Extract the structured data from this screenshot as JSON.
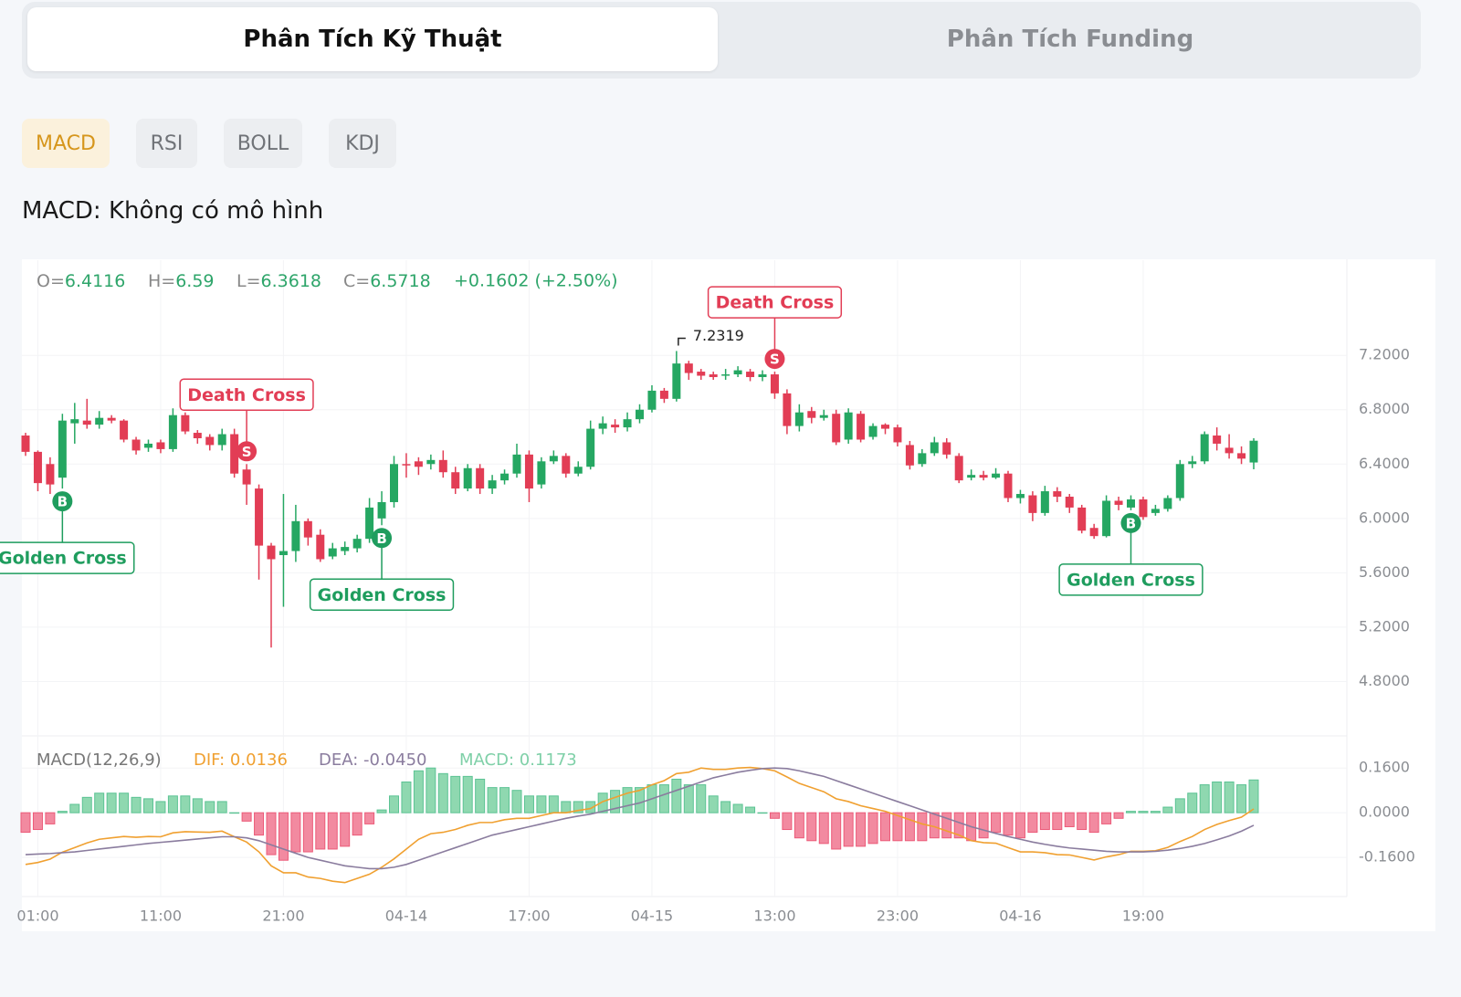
{
  "tabs": [
    "Phân Tích Kỹ Thuật",
    "Phân Tích Funding"
  ],
  "indicators": [
    "MACD",
    "RSI",
    "BOLL",
    "KDJ"
  ],
  "pattern_text": "MACD: Không có mô hình",
  "chart_data": [
    {
      "type": "candlestick",
      "grid": true,
      "up_color": "#25a762",
      "down_color": "#e23d55",
      "legend": [
        "O=6.4116",
        "H=6.59",
        "L=6.3618",
        "C=6.5718",
        "+0.1602 (+2.50%)"
      ],
      "categories": [
        null,
        "01:00",
        null,
        null,
        null,
        null,
        null,
        null,
        null,
        null,
        null,
        "11:00",
        null,
        null,
        null,
        null,
        null,
        null,
        null,
        null,
        null,
        "21:00",
        null,
        null,
        null,
        null,
        null,
        null,
        null,
        null,
        null,
        "04-14",
        null,
        null,
        null,
        null,
        null,
        null,
        null,
        null,
        null,
        "17:00",
        null,
        null,
        null,
        null,
        null,
        null,
        null,
        null,
        null,
        "04-15",
        null,
        null,
        null,
        null,
        null,
        null,
        null,
        null,
        null,
        "13:00",
        null,
        null,
        null,
        null,
        null,
        null,
        null,
        null,
        null,
        "23:00",
        null,
        null,
        null,
        null,
        null,
        null,
        null,
        null,
        null,
        "04-16",
        null,
        null,
        null,
        null,
        null,
        null,
        null,
        null,
        null,
        "19:00",
        null,
        null,
        null,
        null,
        null,
        null,
        null,
        null,
        null
      ],
      "open": [
        6.61,
        6.49,
        6.4,
        6.3,
        6.7,
        6.72,
        6.69,
        6.74,
        6.72,
        6.58,
        6.52,
        6.56,
        6.51,
        6.76,
        6.63,
        6.6,
        6.54,
        6.62,
        6.36,
        6.22,
        5.8,
        5.73,
        5.76,
        5.98,
        5.88,
        5.72,
        5.76,
        5.78,
        5.85,
        6.0,
        6.12,
        6.4,
        6.42,
        6.4,
        6.43,
        6.34,
        6.22,
        6.37,
        6.22,
        6.28,
        6.33,
        6.47,
        6.25,
        6.42,
        6.46,
        6.33,
        6.38,
        6.66,
        6.69,
        6.67,
        6.73,
        6.8,
        6.94,
        6.88,
        7.14,
        7.08,
        7.06,
        7.05,
        7.06,
        7.08,
        7.04,
        7.06,
        6.92,
        6.68,
        6.79,
        6.74,
        6.77,
        6.58,
        6.77,
        6.6,
        6.69,
        6.67,
        6.54,
        6.4,
        6.48,
        6.56,
        6.46,
        6.3,
        6.32,
        6.3,
        6.33,
        6.15,
        6.17,
        6.04,
        6.2,
        6.16,
        6.08,
        5.93,
        5.87,
        6.13,
        6.08,
        6.14,
        6.04,
        6.07,
        6.15,
        6.4,
        6.42,
        6.61,
        6.52,
        6.48,
        6.4116
      ],
      "high": [
        6.63,
        6.5,
        6.45,
        6.77,
        6.85,
        6.88,
        6.79,
        6.76,
        6.73,
        6.6,
        6.58,
        6.58,
        6.81,
        6.78,
        6.65,
        6.62,
        6.66,
        6.66,
        6.4,
        6.25,
        5.82,
        6.18,
        6.1,
        6.0,
        5.92,
        5.82,
        5.83,
        5.88,
        6.15,
        6.2,
        6.46,
        6.48,
        6.45,
        6.47,
        6.5,
        6.38,
        6.4,
        6.4,
        6.32,
        6.36,
        6.55,
        6.5,
        6.45,
        6.5,
        6.48,
        6.42,
        6.72,
        6.75,
        6.73,
        6.78,
        6.84,
        6.98,
        6.96,
        7.2319,
        7.16,
        7.1,
        7.08,
        7.1,
        7.12,
        7.1,
        7.09,
        7.08,
        6.95,
        6.84,
        6.82,
        6.8,
        6.8,
        6.81,
        6.79,
        6.7,
        6.7,
        6.69,
        6.57,
        6.51,
        6.6,
        6.59,
        6.48,
        6.36,
        6.35,
        6.37,
        6.35,
        6.21,
        6.2,
        6.24,
        6.23,
        6.18,
        6.1,
        5.96,
        6.17,
        6.16,
        6.17,
        6.16,
        6.1,
        6.17,
        6.43,
        6.46,
        6.64,
        6.67,
        6.62,
        6.53,
        6.59
      ],
      "low": [
        6.46,
        6.2,
        6.18,
        6.22,
        6.55,
        6.66,
        6.66,
        6.7,
        6.56,
        6.47,
        6.49,
        6.48,
        6.49,
        6.62,
        6.55,
        6.5,
        6.5,
        6.3,
        6.1,
        5.55,
        5.05,
        5.35,
        5.68,
        5.8,
        5.68,
        5.7,
        5.73,
        5.75,
        5.82,
        5.95,
        6.08,
        6.3,
        6.32,
        6.36,
        6.3,
        6.18,
        6.2,
        6.18,
        6.18,
        6.25,
        6.3,
        6.12,
        6.22,
        6.4,
        6.3,
        6.31,
        6.36,
        6.62,
        6.63,
        6.64,
        6.7,
        6.78,
        6.85,
        6.86,
        7.02,
        7.02,
        7.02,
        7.02,
        7.04,
        7.01,
        7.01,
        6.88,
        6.62,
        6.64,
        6.7,
        6.72,
        6.54,
        6.55,
        6.56,
        6.58,
        6.62,
        6.53,
        6.36,
        6.38,
        6.46,
        6.44,
        6.26,
        6.28,
        6.28,
        6.29,
        6.12,
        6.11,
        5.98,
        6.02,
        6.12,
        6.04,
        5.89,
        5.85,
        5.86,
        6.06,
        6.06,
        5.99,
        6.02,
        6.05,
        6.13,
        6.37,
        6.4,
        6.5,
        6.44,
        6.4,
        6.3618
      ],
      "close": [
        6.49,
        6.26,
        6.25,
        6.72,
        6.73,
        6.69,
        6.74,
        6.72,
        6.58,
        6.5,
        6.55,
        6.51,
        6.76,
        6.64,
        6.59,
        6.54,
        6.62,
        6.33,
        6.25,
        5.8,
        5.7,
        5.76,
        5.98,
        5.86,
        5.7,
        5.78,
        5.79,
        5.85,
        6.08,
        6.12,
        6.4,
        6.39,
        6.38,
        6.43,
        6.34,
        6.22,
        6.37,
        6.22,
        6.28,
        6.33,
        6.47,
        6.22,
        6.42,
        6.46,
        6.33,
        6.38,
        6.66,
        6.7,
        6.67,
        6.73,
        6.8,
        6.94,
        6.88,
        7.14,
        7.07,
        7.05,
        7.04,
        7.06,
        7.09,
        7.04,
        7.06,
        6.92,
        6.68,
        6.78,
        6.74,
        6.76,
        6.56,
        6.78,
        6.58,
        6.68,
        6.66,
        6.56,
        6.39,
        6.48,
        6.56,
        6.47,
        6.28,
        6.32,
        6.3,
        6.33,
        6.15,
        6.18,
        6.04,
        6.2,
        6.16,
        6.08,
        5.91,
        5.87,
        6.13,
        6.1,
        6.14,
        6.01,
        6.07,
        6.15,
        6.4,
        6.42,
        6.62,
        6.55,
        6.48,
        6.44,
        6.5718
      ],
      "ylim": [
        4.4,
        7.9
      ],
      "yticks": [
        {
          "value": 7.2,
          "label": "7.2000"
        },
        {
          "value": 6.8,
          "label": "6.8000"
        },
        {
          "value": 6.4,
          "label": "6.4000"
        },
        {
          "value": 6.0,
          "label": "6.0000"
        },
        {
          "value": 5.6,
          "label": "5.6000"
        },
        {
          "value": 5.2,
          "label": "5.2000"
        },
        {
          "value": 4.8,
          "label": "4.8000"
        }
      ],
      "signals": [
        {
          "index": 3,
          "marker": "B",
          "label": "Golden Cross"
        },
        {
          "index": 18,
          "marker": "S",
          "label": "Death Cross"
        },
        {
          "index": 29,
          "marker": "B",
          "label": "Golden Cross"
        },
        {
          "index": 61,
          "marker": "S",
          "label": "Death Cross"
        },
        {
          "index": 90,
          "marker": "B",
          "label": "Golden Cross"
        }
      ]
    },
    {
      "type": "macd",
      "grid": true,
      "legend": [
        {
          "text": "MACD(12,26,9)",
          "color": "#777777"
        },
        {
          "text": "DIF: 0.0136",
          "color": "#f0a030"
        },
        {
          "text": "DEA: -0.0450",
          "color": "#8a7c9e"
        },
        {
          "text": "MACD: 0.1173",
          "color": "#7fd0a8"
        }
      ],
      "ylim": [
        -0.3,
        0.275
      ],
      "yticks": [
        {
          "value": 0.16,
          "label": "0.1600"
        },
        {
          "value": 0,
          "label": "0.0000"
        },
        {
          "value": -0.16,
          "label": "-0.1600"
        }
      ],
      "series": [
        {
          "type": "bar",
          "color": "#8fd8b0",
          "down_color": "#f28aa0",
          "values": [
            -0.07,
            -0.06,
            -0.04,
            0.005,
            0.03,
            0.055,
            0.07,
            0.07,
            0.07,
            0.055,
            0.05,
            0.04,
            0.06,
            0.06,
            0.05,
            0.04,
            0.04,
            0,
            -0.03,
            -0.08,
            -0.15,
            -0.17,
            -0.14,
            -0.14,
            -0.13,
            -0.13,
            -0.12,
            -0.08,
            -0.04,
            0.01,
            0.06,
            0.11,
            0.15,
            0.16,
            0.14,
            0.13,
            0.13,
            0.12,
            0.09,
            0.09,
            0.08,
            0.06,
            0.06,
            0.06,
            0.04,
            0.04,
            0.04,
            0.07,
            0.08,
            0.09,
            0.09,
            0.1,
            0.1,
            0.12,
            0.1,
            0.1,
            0.06,
            0.04,
            0.03,
            0.02,
            0,
            -0.02,
            -0.06,
            -0.09,
            -0.1,
            -0.11,
            -0.13,
            -0.12,
            -0.12,
            -0.11,
            -0.1,
            -0.1,
            -0.1,
            -0.1,
            -0.09,
            -0.09,
            -0.09,
            -0.1,
            -0.09,
            -0.07,
            -0.08,
            -0.09,
            -0.07,
            -0.06,
            -0.06,
            -0.05,
            -0.06,
            -0.07,
            -0.04,
            -0.02,
            0.005,
            0.005,
            0.005,
            0.02,
            0.05,
            0.07,
            0.1,
            0.11,
            0.11,
            0.1,
            0.1173
          ]
        },
        {
          "type": "line",
          "color": "#f0a030",
          "values": [
            -0.185,
            -0.178,
            -0.166,
            -0.141,
            -0.125,
            -0.108,
            -0.095,
            -0.09,
            -0.085,
            -0.088,
            -0.085,
            -0.086,
            -0.072,
            -0.068,
            -0.069,
            -0.07,
            -0.066,
            -0.086,
            -0.105,
            -0.14,
            -0.19,
            -0.215,
            -0.215,
            -0.23,
            -0.235,
            -0.245,
            -0.25,
            -0.235,
            -0.22,
            -0.195,
            -0.165,
            -0.13,
            -0.095,
            -0.075,
            -0.07,
            -0.06,
            -0.045,
            -0.035,
            -0.035,
            -0.025,
            -0.02,
            -0.02,
            -0.01,
            0,
            0,
            0.008,
            0.015,
            0.04,
            0.055,
            0.07,
            0.08,
            0.1,
            0.115,
            0.14,
            0.145,
            0.16,
            0.155,
            0.155,
            0.16,
            0.162,
            0.158,
            0.15,
            0.128,
            0.105,
            0.09,
            0.075,
            0.05,
            0.04,
            0.025,
            0.015,
            0.005,
            -0.01,
            -0.025,
            -0.04,
            -0.05,
            -0.065,
            -0.08,
            -0.1,
            -0.107,
            -0.109,
            -0.125,
            -0.14,
            -0.14,
            -0.143,
            -0.15,
            -0.151,
            -0.16,
            -0.169,
            -0.158,
            -0.15,
            -0.138,
            -0.138,
            -0.136,
            -0.124,
            -0.103,
            -0.085,
            -0.06,
            -0.042,
            -0.028,
            -0.016,
            0.0136
          ]
        },
        {
          "type": "line",
          "color": "#8a7c9e",
          "values": [
            -0.15,
            -0.148,
            -0.146,
            -0.143,
            -0.14,
            -0.135,
            -0.13,
            -0.125,
            -0.12,
            -0.115,
            -0.11,
            -0.106,
            -0.102,
            -0.098,
            -0.094,
            -0.09,
            -0.086,
            -0.086,
            -0.09,
            -0.1,
            -0.115,
            -0.13,
            -0.145,
            -0.16,
            -0.17,
            -0.18,
            -0.19,
            -0.195,
            -0.2,
            -0.2,
            -0.195,
            -0.185,
            -0.17,
            -0.155,
            -0.14,
            -0.125,
            -0.11,
            -0.095,
            -0.08,
            -0.07,
            -0.06,
            -0.05,
            -0.04,
            -0.03,
            -0.02,
            -0.012,
            -0.005,
            0.005,
            0.015,
            0.025,
            0.035,
            0.05,
            0.065,
            0.08,
            0.095,
            0.11,
            0.125,
            0.135,
            0.145,
            0.152,
            0.158,
            0.16,
            0.158,
            0.15,
            0.14,
            0.13,
            0.115,
            0.1,
            0.085,
            0.07,
            0.055,
            0.04,
            0.025,
            0.01,
            -0.005,
            -0.02,
            -0.035,
            -0.05,
            -0.062,
            -0.074,
            -0.085,
            -0.095,
            -0.105,
            -0.113,
            -0.12,
            -0.126,
            -0.13,
            -0.134,
            -0.138,
            -0.14,
            -0.14,
            -0.14,
            -0.138,
            -0.134,
            -0.128,
            -0.12,
            -0.11,
            -0.097,
            -0.083,
            -0.066,
            -0.045
          ]
        }
      ]
    }
  ]
}
